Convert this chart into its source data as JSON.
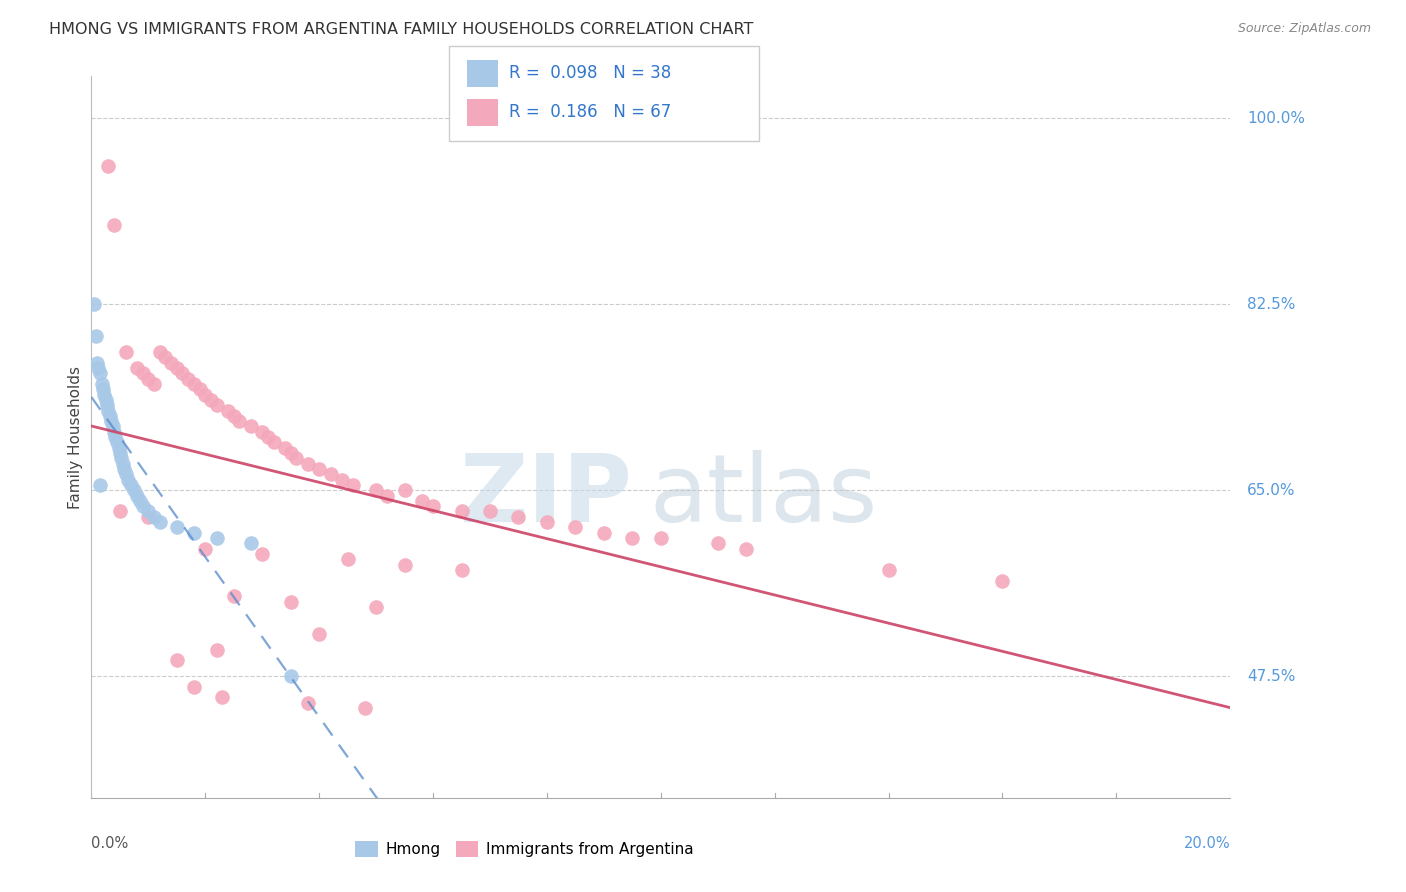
{
  "title": "HMONG VS IMMIGRANTS FROM ARGENTINA FAMILY HOUSEHOLDS CORRELATION CHART",
  "source": "Source: ZipAtlas.com",
  "ylabel": "Family Households",
  "yticks": [
    47.5,
    65.0,
    82.5,
    100.0
  ],
  "ytick_labels": [
    "47.5%",
    "65.0%",
    "82.5%",
    "100.0%"
  ],
  "xmin": 0.0,
  "xmax": 20.0,
  "ymin": 36.0,
  "ymax": 104.0,
  "hmong_R": "0.098",
  "hmong_N": "38",
  "argentina_R": "0.186",
  "argentina_N": "67",
  "hmong_color": "#a8c8e8",
  "argentina_color": "#f4a8bb",
  "hmong_line_color": "#5588cc",
  "argentina_line_color": "#cc4466",
  "watermark_zip_color": "#c8dce8",
  "watermark_atlas_color": "#b8ccd8",
  "background": "#ffffff",
  "hmong_x": [
    0.05,
    0.08,
    0.1,
    0.12,
    0.15,
    0.18,
    0.2,
    0.22,
    0.25,
    0.28,
    0.3,
    0.32,
    0.35,
    0.38,
    0.4,
    0.42,
    0.45,
    0.48,
    0.5,
    0.52,
    0.55,
    0.58,
    0.6,
    0.65,
    0.7,
    0.75,
    0.8,
    0.85,
    0.9,
    1.0,
    1.1,
    1.2,
    1.5,
    1.8,
    2.2,
    2.8,
    0.15,
    3.5
  ],
  "hmong_y": [
    82.5,
    79.5,
    77.0,
    76.5,
    76.0,
    75.0,
    74.5,
    74.0,
    73.5,
    73.0,
    72.5,
    72.0,
    71.5,
    71.0,
    70.5,
    70.0,
    69.5,
    69.0,
    68.5,
    68.0,
    67.5,
    67.0,
    66.5,
    66.0,
    65.5,
    65.0,
    64.5,
    64.0,
    63.5,
    63.0,
    62.5,
    62.0,
    61.5,
    61.0,
    60.5,
    60.0,
    65.5,
    47.5
  ],
  "argentina_x": [
    0.3,
    0.4,
    0.6,
    0.8,
    0.9,
    1.0,
    1.1,
    1.2,
    1.3,
    1.4,
    1.5,
    1.6,
    1.7,
    1.8,
    1.9,
    2.0,
    2.1,
    2.2,
    2.4,
    2.5,
    2.6,
    2.8,
    3.0,
    3.1,
    3.2,
    3.4,
    3.5,
    3.6,
    3.8,
    4.0,
    4.2,
    4.4,
    4.6,
    5.0,
    5.2,
    5.5,
    5.8,
    6.0,
    6.5,
    7.0,
    7.5,
    8.0,
    8.5,
    9.0,
    9.5,
    10.0,
    11.0,
    11.5,
    14.0,
    16.0,
    0.5,
    1.0,
    2.0,
    3.0,
    4.5,
    5.5,
    6.5,
    2.5,
    3.5,
    5.0,
    4.0,
    2.2,
    1.5,
    1.8,
    2.3,
    3.8,
    4.8
  ],
  "argentina_y": [
    95.5,
    90.0,
    78.0,
    76.5,
    76.0,
    75.5,
    75.0,
    78.0,
    77.5,
    77.0,
    76.5,
    76.0,
    75.5,
    75.0,
    74.5,
    74.0,
    73.5,
    73.0,
    72.5,
    72.0,
    71.5,
    71.0,
    70.5,
    70.0,
    69.5,
    69.0,
    68.5,
    68.0,
    67.5,
    67.0,
    66.5,
    66.0,
    65.5,
    65.0,
    64.5,
    65.0,
    64.0,
    63.5,
    63.0,
    63.0,
    62.5,
    62.0,
    61.5,
    61.0,
    60.5,
    60.5,
    60.0,
    59.5,
    57.5,
    56.5,
    63.0,
    62.5,
    59.5,
    59.0,
    58.5,
    58.0,
    57.5,
    55.0,
    54.5,
    54.0,
    51.5,
    50.0,
    49.0,
    46.5,
    45.5,
    45.0,
    44.5
  ],
  "legend_R_line1": "R =  0.098   N = 38",
  "legend_R_line2": "R =  0.186   N = 67"
}
